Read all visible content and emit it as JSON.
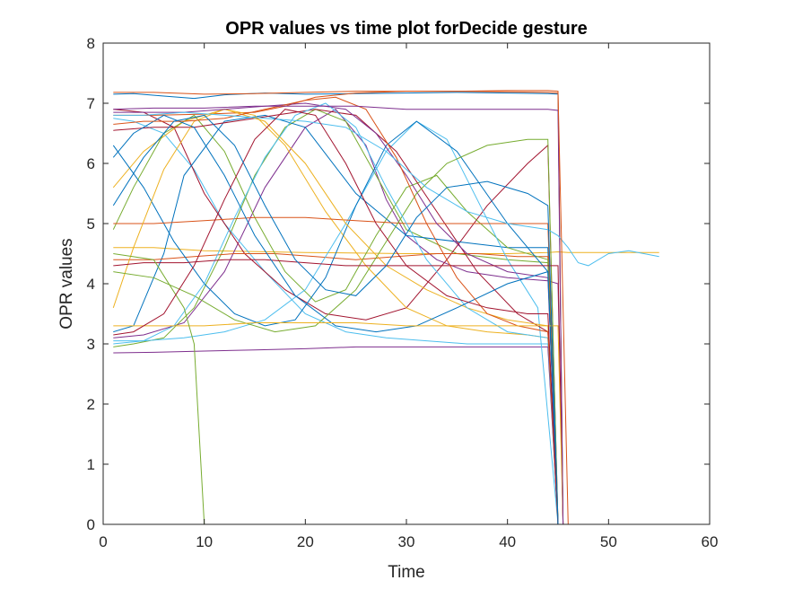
{
  "chart_data": {
    "type": "line",
    "title": "OPR values vs time plot forDecide gesture",
    "xlabel": "Time",
    "ylabel": "OPR values",
    "xlim": [
      0,
      60
    ],
    "ylim": [
      0,
      8
    ],
    "xticks": [
      0,
      10,
      20,
      30,
      40,
      50,
      60
    ],
    "yticks": [
      0,
      1,
      2,
      3,
      4,
      5,
      6,
      7,
      8
    ],
    "grid": false,
    "legend": "none",
    "colors": [
      "#0072BD",
      "#D95319",
      "#EDB120",
      "#7E2F8E",
      "#77AC30",
      "#4DBEEE",
      "#A2142F"
    ],
    "series": [
      {
        "x": [
          1,
          3,
          6,
          9,
          12,
          16,
          20,
          25,
          30,
          35,
          40,
          44,
          45,
          45.5,
          46
        ],
        "values": [
          7.15,
          7.16,
          7.12,
          7.08,
          7.14,
          7.17,
          7.15,
          7.16,
          7.17,
          7.18,
          7.17,
          7.16,
          7.15,
          0,
          0
        ]
      },
      {
        "x": [
          1,
          5,
          10,
          15,
          18,
          21,
          25,
          30,
          35,
          40,
          44,
          45,
          45.5
        ],
        "values": [
          6.8,
          6.8,
          6.82,
          6.85,
          6.95,
          7.1,
          7.17,
          7.2,
          7.2,
          7.21,
          7.21,
          7.2,
          0
        ]
      },
      {
        "x": [
          1,
          5,
          10,
          20,
          30,
          40,
          44,
          45,
          46,
          47,
          50,
          55
        ],
        "values": [
          4.6,
          4.6,
          4.55,
          4.52,
          4.5,
          4.5,
          4.52,
          4.53,
          4.52,
          4.52,
          4.52,
          4.52
        ]
      },
      {
        "x": [
          1,
          4,
          8,
          12,
          16,
          20,
          23,
          26,
          28,
          30,
          33,
          36,
          40,
          44,
          45,
          45.5
        ],
        "values": [
          3.1,
          3.15,
          3.35,
          4.2,
          5.6,
          6.6,
          6.9,
          6.3,
          5.4,
          4.8,
          4.4,
          4.2,
          4.1,
          4.05,
          4.0,
          0
        ]
      },
      {
        "x": [
          1,
          3,
          6,
          9,
          12,
          15,
          18,
          21,
          24,
          27,
          30,
          35,
          40,
          44,
          45
        ],
        "values": [
          2.95,
          3.0,
          3.1,
          3.6,
          4.6,
          5.8,
          6.6,
          6.9,
          6.7,
          5.8,
          4.9,
          4.5,
          4.4,
          4.35,
          0
        ]
      },
      {
        "x": [
          1,
          3,
          6,
          9,
          12,
          16,
          20,
          24,
          28,
          32,
          36,
          40,
          44,
          45
        ],
        "values": [
          6.75,
          6.7,
          6.5,
          5.9,
          5.0,
          4.2,
          3.5,
          3.2,
          3.1,
          3.05,
          3.0,
          3.0,
          3.0,
          0
        ]
      },
      {
        "x": [
          1,
          4,
          7,
          10,
          14,
          18,
          22,
          26,
          30,
          34,
          38,
          42,
          44,
          45
        ],
        "values": [
          6.9,
          6.85,
          6.6,
          5.5,
          4.5,
          3.9,
          3.5,
          3.4,
          3.6,
          4.4,
          5.3,
          6.0,
          6.3,
          0
        ]
      },
      {
        "x": [
          1,
          3,
          6,
          8,
          12,
          16,
          20,
          25,
          30,
          35,
          40,
          44,
          45
        ],
        "values": [
          3.2,
          3.3,
          4.5,
          5.8,
          6.7,
          6.8,
          6.6,
          5.5,
          4.8,
          4.7,
          4.6,
          4.6,
          0
        ]
      },
      {
        "x": [
          1,
          5,
          9,
          13,
          17,
          21,
          25,
          29,
          33,
          37,
          41,
          44,
          45
        ],
        "values": [
          4.4,
          4.4,
          4.45,
          4.5,
          4.5,
          4.45,
          4.4,
          4.45,
          4.5,
          4.5,
          4.45,
          4.45,
          0
        ]
      },
      {
        "x": [
          1,
          4,
          8,
          12,
          15,
          18,
          22,
          26,
          30,
          34,
          38,
          42,
          44,
          45
        ],
        "values": [
          5.6,
          6.2,
          6.7,
          6.9,
          6.8,
          6.3,
          5.2,
          4.3,
          3.6,
          3.3,
          3.2,
          3.15,
          3.1,
          0
        ]
      },
      {
        "x": [
          1,
          5,
          10,
          15,
          20,
          25,
          30,
          35,
          40,
          44,
          45
        ],
        "values": [
          2.85,
          2.86,
          2.88,
          2.9,
          2.92,
          2.95,
          2.95,
          2.95,
          2.95,
          2.95,
          0
        ]
      },
      {
        "x": [
          1,
          3,
          6,
          9,
          12,
          15,
          18,
          21,
          24,
          27,
          30,
          33,
          36,
          40,
          44,
          45
        ],
        "values": [
          4.9,
          5.6,
          6.5,
          6.8,
          6.2,
          5.1,
          4.2,
          3.7,
          3.9,
          4.8,
          5.6,
          5.8,
          5.2,
          4.6,
          4.4,
          0
        ]
      },
      {
        "x": [
          1,
          4,
          8,
          12,
          16,
          20,
          24,
          28,
          31,
          34,
          37,
          40,
          43,
          45
        ],
        "values": [
          3.05,
          3.05,
          3.1,
          3.2,
          3.4,
          3.9,
          5.0,
          6.2,
          6.7,
          6.4,
          5.4,
          4.4,
          3.6,
          0
        ]
      },
      {
        "x": [
          1,
          5,
          9,
          13,
          17,
          21,
          25,
          29,
          33,
          37,
          41,
          44,
          45
        ],
        "values": [
          6.55,
          6.6,
          6.6,
          6.7,
          6.8,
          6.9,
          6.8,
          6.2,
          5.2,
          4.2,
          3.5,
          3.2,
          0
        ]
      },
      {
        "x": [
          1,
          4,
          7,
          10,
          13,
          16,
          19,
          22,
          25,
          28,
          31,
          35,
          40,
          44,
          45
        ],
        "values": [
          6.3,
          5.6,
          4.7,
          4.0,
          3.5,
          3.3,
          3.4,
          4.1,
          5.3,
          6.3,
          6.7,
          6.2,
          5.0,
          4.2,
          0
        ]
      },
      {
        "x": [
          1,
          5,
          10,
          15,
          20,
          25,
          30,
          35,
          40,
          44,
          45
        ],
        "values": [
          5.0,
          5.0,
          5.05,
          5.1,
          5.1,
          5.05,
          5.0,
          5.0,
          5.0,
          5.0,
          0
        ]
      },
      {
        "x": [
          1,
          3,
          6,
          9,
          12,
          16,
          20,
          24,
          28,
          32,
          36,
          40,
          44,
          45
        ],
        "values": [
          3.6,
          4.6,
          5.9,
          6.7,
          6.9,
          6.7,
          6.0,
          5.0,
          4.3,
          3.9,
          3.6,
          3.4,
          3.3,
          0
        ]
      },
      {
        "x": [
          1,
          4,
          8,
          12,
          16,
          20,
          24,
          27,
          30,
          33,
          36,
          40,
          44,
          45
        ],
        "values": [
          6.85,
          6.85,
          6.85,
          6.9,
          6.95,
          7.0,
          6.9,
          6.5,
          5.8,
          5.0,
          4.5,
          4.2,
          4.1,
          0
        ]
      },
      {
        "x": [
          1,
          5,
          9,
          13,
          17,
          21,
          25,
          28,
          31,
          34,
          38,
          42,
          44,
          45
        ],
        "values": [
          4.2,
          4.1,
          3.8,
          3.4,
          3.2,
          3.3,
          3.9,
          4.7,
          5.5,
          6.0,
          6.3,
          6.4,
          6.4,
          0
        ]
      },
      {
        "x": [
          1,
          4,
          7,
          10,
          13,
          16,
          19,
          22,
          25,
          28,
          32,
          36,
          40,
          44,
          45
        ],
        "values": [
          3.0,
          3.05,
          3.3,
          4.0,
          5.1,
          6.1,
          6.8,
          7.0,
          6.6,
          5.6,
          4.4,
          3.6,
          3.2,
          3.1,
          0
        ]
      },
      {
        "x": [
          1,
          4,
          8,
          12,
          16,
          20,
          24,
          28,
          32,
          36,
          40,
          44,
          45,
          45.5
        ],
        "values": [
          4.3,
          4.35,
          4.35,
          4.4,
          4.4,
          4.35,
          4.3,
          4.3,
          4.3,
          4.3,
          4.3,
          4.3,
          4.3,
          0
        ]
      },
      {
        "x": [
          1,
          3,
          6,
          9,
          12,
          15,
          19,
          23,
          27,
          31,
          35,
          40,
          44,
          45
        ],
        "values": [
          6.1,
          6.5,
          6.8,
          6.6,
          5.8,
          4.8,
          3.8,
          3.3,
          3.2,
          3.3,
          3.6,
          4.0,
          4.2,
          0
        ]
      },
      {
        "x": [
          1,
          4,
          8,
          12,
          16,
          20,
          23,
          26,
          29,
          32,
          35,
          38,
          41,
          44,
          45
        ],
        "values": [
          6.65,
          6.7,
          6.7,
          6.75,
          6.9,
          7.05,
          7.1,
          6.9,
          6.1,
          5.0,
          4.1,
          3.5,
          3.3,
          3.2,
          0
        ]
      },
      {
        "x": [
          1,
          5,
          10,
          15,
          20,
          25,
          30,
          35,
          40,
          44,
          45,
          45.5
        ],
        "values": [
          3.3,
          3.3,
          3.3,
          3.35,
          3.35,
          3.35,
          3.3,
          3.3,
          3.3,
          3.3,
          3.3,
          0
        ]
      },
      {
        "x": [
          1,
          5,
          10,
          15,
          20,
          25,
          30,
          35,
          40,
          44,
          45,
          45.5
        ],
        "values": [
          6.9,
          6.92,
          6.92,
          6.95,
          6.95,
          6.95,
          6.9,
          6.9,
          6.9,
          6.9,
          6.88,
          0
        ]
      },
      {
        "x": [
          1,
          5,
          8,
          9,
          10,
          15,
          20,
          30,
          40,
          44,
          45
        ],
        "values": [
          4.5,
          4.4,
          3.6,
          3.0,
          0.0,
          0.0,
          0.0,
          0.0,
          0.0,
          0.0,
          0.0
        ]
      },
      {
        "x": [
          1,
          4,
          8,
          12,
          16,
          20,
          24,
          28,
          32,
          36,
          40,
          44,
          45,
          45.5,
          46,
          47,
          48,
          50,
          52,
          55
        ],
        "values": [
          6.8,
          6.8,
          6.85,
          6.8,
          6.75,
          6.7,
          6.6,
          6.2,
          5.6,
          5.2,
          5.0,
          4.9,
          4.8,
          4.7,
          4.6,
          4.35,
          4.3,
          4.5,
          4.55,
          4.45
        ]
      },
      {
        "x": [
          1,
          3,
          6,
          9,
          12,
          15,
          18,
          21,
          24,
          27,
          30,
          34,
          38,
          42,
          44,
          45
        ],
        "values": [
          3.15,
          3.2,
          3.5,
          4.3,
          5.4,
          6.4,
          6.9,
          6.8,
          6.0,
          5.0,
          4.3,
          3.8,
          3.6,
          3.5,
          3.5,
          0
        ]
      },
      {
        "x": [
          1,
          4,
          7,
          10,
          13,
          16,
          19,
          22,
          25,
          28,
          31,
          34,
          38,
          42,
          44,
          45
        ],
        "values": [
          5.3,
          6.1,
          6.7,
          6.8,
          6.3,
          5.3,
          4.4,
          3.9,
          3.8,
          4.3,
          5.1,
          5.6,
          5.7,
          5.5,
          5.3,
          0
        ]
      },
      {
        "x": [
          1,
          5,
          10,
          15,
          20,
          25,
          30,
          35,
          40,
          44,
          45,
          46
        ],
        "values": [
          7.18,
          7.18,
          7.15,
          7.16,
          7.18,
          7.2,
          7.2,
          7.2,
          7.19,
          7.18,
          7.17,
          0
        ]
      }
    ]
  }
}
